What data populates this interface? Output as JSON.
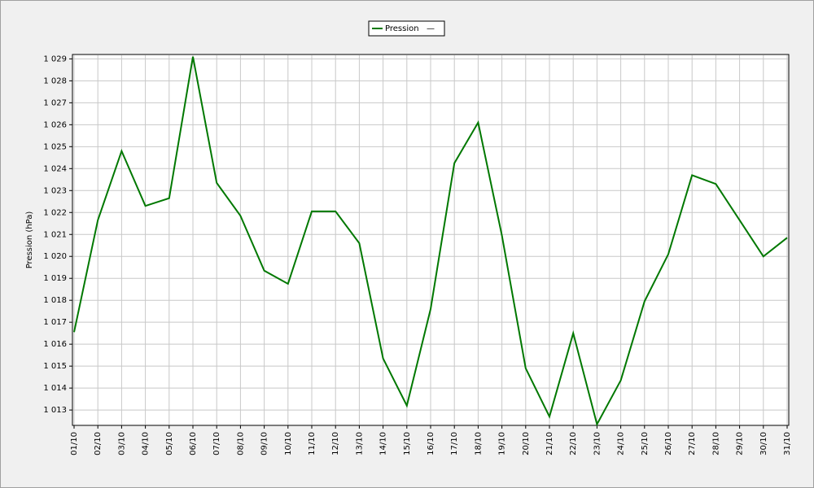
{
  "chart_data": {
    "type": "line",
    "y_label": "Pression (hPa)",
    "categories": [
      "01/10",
      "02/10",
      "03/10",
      "04/10",
      "05/10",
      "06/10",
      "07/10",
      "08/10",
      "09/10",
      "10/10",
      "11/10",
      "12/10",
      "13/10",
      "14/10",
      "15/10",
      "16/10",
      "17/10",
      "18/10",
      "19/10",
      "20/10",
      "21/10",
      "22/10",
      "23/10",
      "24/10",
      "25/10",
      "26/10",
      "27/10",
      "28/10",
      "29/10",
      "30/10",
      "31/10"
    ],
    "series": [
      {
        "name": "Pression",
        "color": "#007800",
        "values": [
          1016.55,
          1021.65,
          1024.8,
          1022.3,
          1022.65,
          1029.1,
          1023.35,
          1021.85,
          1019.35,
          1018.75,
          1022.05,
          1022.05,
          1020.6,
          1015.35,
          1013.2,
          1017.6,
          1024.25,
          1026.1,
          1020.95,
          1014.9,
          1012.7,
          1016.5,
          1012.35,
          1014.35,
          1017.95,
          1020.1,
          1023.7,
          1023.3,
          1021.65,
          1020.0,
          1020.85
        ]
      }
    ],
    "legend_marker": "—",
    "ylim": [
      1012.3,
      1029.2
    ],
    "yticks": [
      {
        "value": 1013,
        "label": "1 013"
      },
      {
        "value": 1014,
        "label": "1 014"
      },
      {
        "value": 1015,
        "label": "1 015"
      },
      {
        "value": 1016,
        "label": "1 016"
      },
      {
        "value": 1017,
        "label": "1 017"
      },
      {
        "value": 1018,
        "label": "1 018"
      },
      {
        "value": 1019,
        "label": "1 019"
      },
      {
        "value": 1020,
        "label": "1 020"
      },
      {
        "value": 1021,
        "label": "1 021"
      },
      {
        "value": 1022,
        "label": "1 022"
      },
      {
        "value": 1023,
        "label": "1 023"
      },
      {
        "value": 1024,
        "label": "1 024"
      },
      {
        "value": 1025,
        "label": "1 025"
      },
      {
        "value": 1026,
        "label": "1 026"
      },
      {
        "value": 1027,
        "label": "1 027"
      },
      {
        "value": 1028,
        "label": "1 028"
      },
      {
        "value": 1029,
        "label": "1 029"
      }
    ],
    "grid": true
  }
}
